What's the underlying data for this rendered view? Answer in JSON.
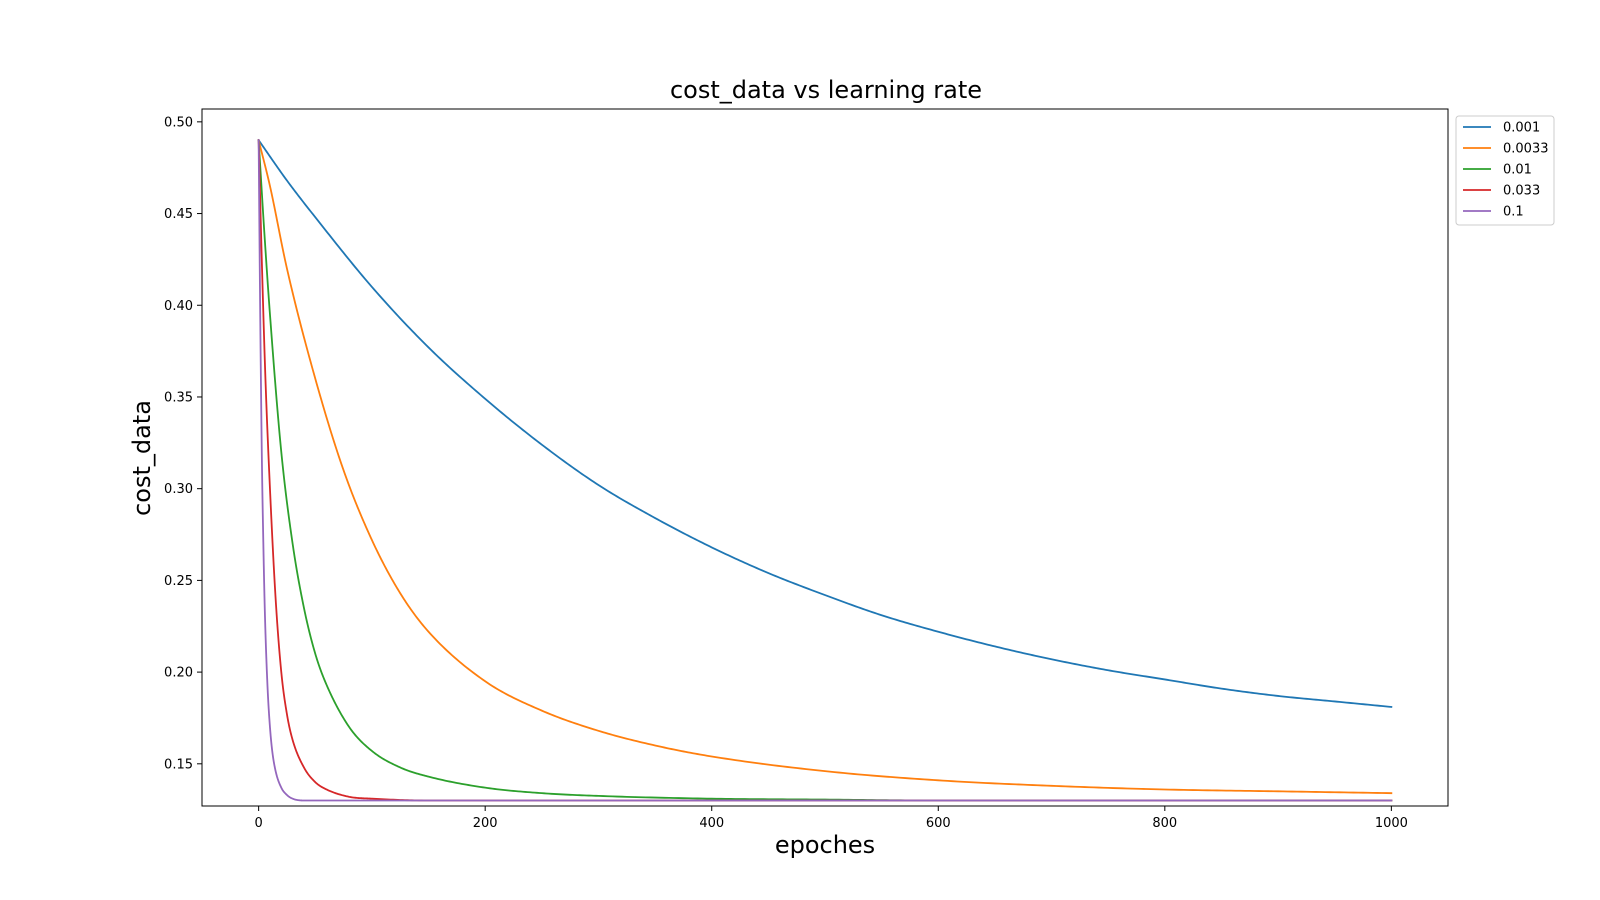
{
  "chart_data": {
    "type": "line",
    "title": "cost_data vs learning rate",
    "xlabel": "epoches",
    "ylabel": "cost_data",
    "xlim": [
      -50,
      1050
    ],
    "ylim": [
      0.127,
      0.507
    ],
    "xticks": [
      0,
      200,
      400,
      600,
      800,
      1000
    ],
    "xtick_labels": [
      "0",
      "200",
      "400",
      "600",
      "800",
      "1000"
    ],
    "yticks": [
      0.15,
      0.2,
      0.25,
      0.3,
      0.35,
      0.4,
      0.45,
      0.5
    ],
    "ytick_labels": [
      "0.15",
      "0.20",
      "0.25",
      "0.30",
      "0.35",
      "0.40",
      "0.45",
      "0.50"
    ],
    "grid": false,
    "legend_position": "outside-top-right",
    "series": [
      {
        "name": "0.001",
        "color": "#1f77b4",
        "x": [
          0,
          25,
          50,
          100,
          150,
          200,
          250,
          300,
          350,
          400,
          450,
          500,
          550,
          600,
          650,
          700,
          750,
          800,
          850,
          900,
          950,
          1000
        ],
        "y": [
          0.49,
          0.468,
          0.448,
          0.41,
          0.377,
          0.349,
          0.324,
          0.302,
          0.284,
          0.268,
          0.254,
          0.242,
          0.231,
          0.222,
          0.214,
          0.207,
          0.201,
          0.196,
          0.191,
          0.187,
          0.184,
          0.181
        ]
      },
      {
        "name": "0.0033",
        "color": "#ff7f0e",
        "x": [
          0,
          10,
          25,
          50,
          75,
          100,
          125,
          150,
          200,
          250,
          300,
          350,
          400,
          500,
          600,
          700,
          800,
          900,
          1000
        ],
        "y": [
          0.49,
          0.465,
          0.42,
          0.36,
          0.31,
          0.272,
          0.243,
          0.222,
          0.195,
          0.179,
          0.168,
          0.16,
          0.154,
          0.146,
          0.141,
          0.138,
          0.136,
          0.135,
          0.134
        ]
      },
      {
        "name": "0.01",
        "color": "#2ca02c",
        "x": [
          0,
          5,
          10,
          20,
          30,
          40,
          50,
          60,
          80,
          100,
          125,
          150,
          200,
          250,
          300,
          400,
          500,
          600,
          800,
          1000
        ],
        "y": [
          0.49,
          0.44,
          0.395,
          0.32,
          0.27,
          0.235,
          0.21,
          0.193,
          0.17,
          0.157,
          0.148,
          0.143,
          0.137,
          0.134,
          0.1325,
          0.131,
          0.1305,
          0.13,
          0.13,
          0.13
        ]
      },
      {
        "name": "0.033",
        "color": "#d62728",
        "x": [
          0,
          3,
          6,
          10,
          15,
          20,
          25,
          30,
          40,
          50,
          60,
          80,
          100,
          150,
          200,
          300,
          500,
          1000
        ],
        "y": [
          0.49,
          0.42,
          0.36,
          0.3,
          0.24,
          0.2,
          0.177,
          0.163,
          0.148,
          0.14,
          0.136,
          0.132,
          0.131,
          0.13,
          0.13,
          0.13,
          0.13,
          0.13
        ]
      },
      {
        "name": "0.1",
        "color": "#9467bd",
        "x": [
          0,
          1,
          2,
          3,
          4,
          5,
          6,
          8,
          10,
          12,
          15,
          20,
          25,
          30,
          40,
          60,
          100,
          200,
          1000
        ],
        "y": [
          0.49,
          0.42,
          0.36,
          0.31,
          0.275,
          0.245,
          0.222,
          0.19,
          0.17,
          0.157,
          0.146,
          0.137,
          0.133,
          0.131,
          0.13,
          0.13,
          0.13,
          0.13,
          0.13
        ]
      }
    ]
  }
}
